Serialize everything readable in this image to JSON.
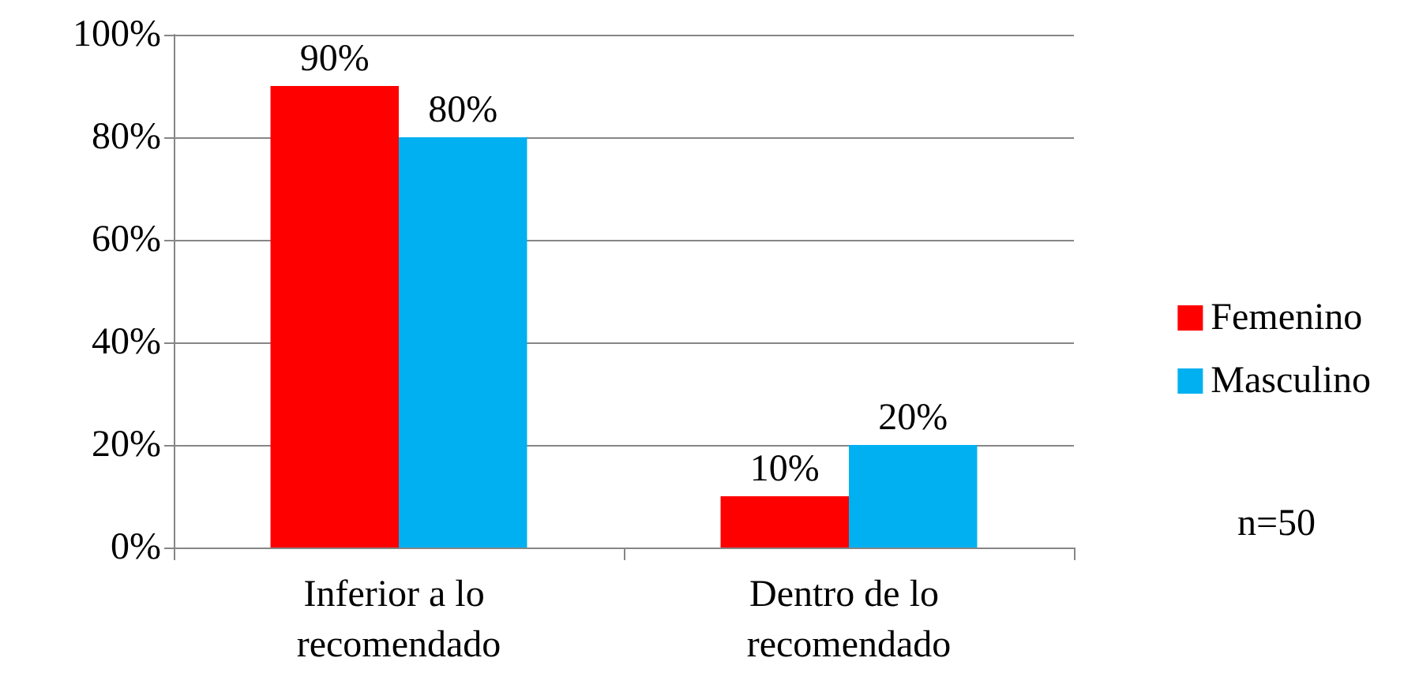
{
  "chart_data": {
    "type": "bar",
    "categories": [
      "Inferior a lo recomendado",
      "Dentro de lo recomendado"
    ],
    "series": [
      {
        "name": "Femenino",
        "color": "#ff0000",
        "values": [
          90,
          10
        ],
        "value_labels": [
          "90%",
          "10%"
        ]
      },
      {
        "name": "Masculino",
        "color": "#00b0f0",
        "values": [
          80,
          20
        ],
        "value_labels": [
          "80%",
          "20%"
        ]
      }
    ],
    "ylim": [
      0,
      100
    ],
    "yticks": [
      {
        "value": 0,
        "label": "0%"
      },
      {
        "value": 20,
        "label": "20%"
      },
      {
        "value": 40,
        "label": "40%"
      },
      {
        "value": 60,
        "label": "60%"
      },
      {
        "value": 80,
        "label": "80%"
      },
      {
        "value": 100,
        "label": "100%"
      }
    ],
    "grid": "y",
    "legend": "right",
    "annotations": [
      "n=50"
    ]
  }
}
